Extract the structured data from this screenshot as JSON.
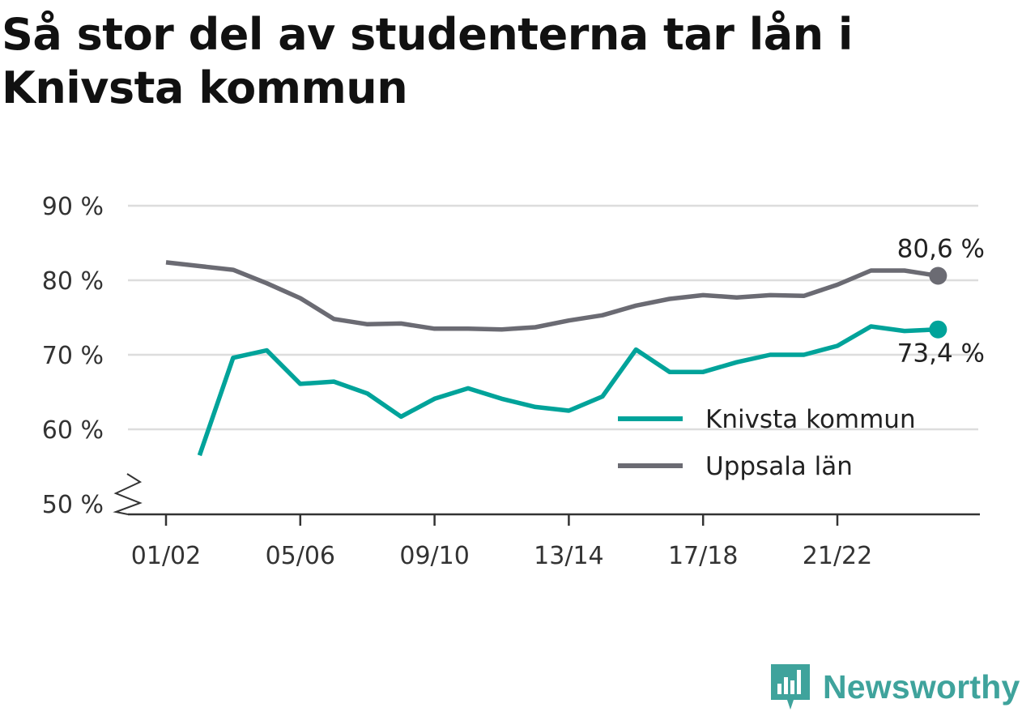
{
  "title": "Så stor del av studenterna tar lån i Knivsta kommun",
  "brand": {
    "name": "Newsworthy",
    "icon": "newsworthy-logo-icon",
    "color": "#3fa39c"
  },
  "chart_data": {
    "type": "line",
    "title": "Så stor del av studenterna tar lån i Knivsta kommun",
    "x": [
      "01/02",
      "02/03",
      "03/04",
      "04/05",
      "05/06",
      "06/07",
      "07/08",
      "08/09",
      "09/10",
      "10/11",
      "11/12",
      "12/13",
      "13/14",
      "14/15",
      "15/16",
      "16/17",
      "17/18",
      "18/19",
      "19/20",
      "20/21",
      "21/22",
      "22/23",
      "23/24",
      "24/25"
    ],
    "x_tick_labels": [
      "01/02",
      "05/06",
      "09/10",
      "13/14",
      "17/18",
      "21/22"
    ],
    "y_tick_labels": [
      "50 %",
      "60 %",
      "70 %",
      "80 %",
      "90 %"
    ],
    "ylim": [
      50,
      90
    ],
    "y_axis_break": true,
    "grid": true,
    "legend_position": "right",
    "series": [
      {
        "name": "Knivsta kommun",
        "color": "#00a39a",
        "values": [
          null,
          56.5,
          69.6,
          70.6,
          66.1,
          66.4,
          64.8,
          61.7,
          64.1,
          65.5,
          64.1,
          63.0,
          62.5,
          64.4,
          70.7,
          67.7,
          67.7,
          69.0,
          70.0,
          70.0,
          71.2,
          73.8,
          73.2,
          73.4
        ],
        "end_label": "73,4 %"
      },
      {
        "name": "Uppsala län",
        "color": "#6b6b73",
        "values": [
          82.4,
          81.9,
          81.4,
          79.6,
          77.6,
          74.8,
          74.1,
          74.2,
          73.5,
          73.5,
          73.4,
          73.7,
          74.6,
          75.3,
          76.6,
          77.5,
          78.0,
          77.7,
          78.0,
          77.9,
          79.4,
          81.3,
          81.3,
          80.6
        ],
        "end_label": "80,6 %"
      }
    ]
  }
}
